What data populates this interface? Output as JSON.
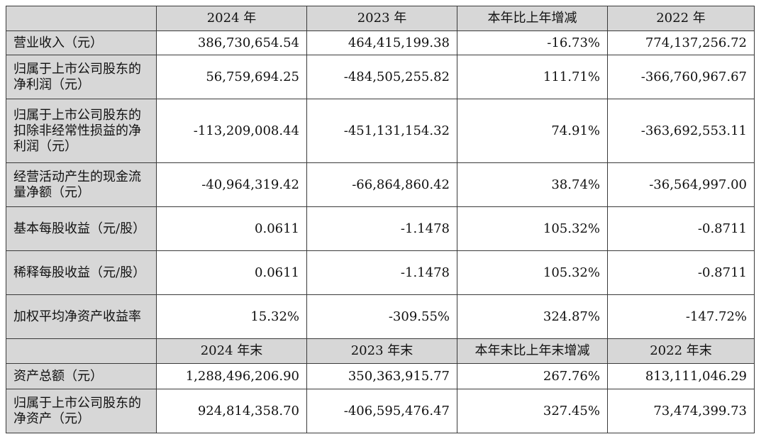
{
  "header1": [
    "",
    "2024 年",
    "2023 年",
    "本年比上年增减",
    "2022 年"
  ],
  "rows1": [
    {
      "label": "营业收入（元）",
      "values": [
        "386,730,654.54",
        "464,415,199.38",
        "-16.73%",
        "774,137,256.72"
      ]
    },
    {
      "label": "归属于上市公司股东的净利润（元）",
      "values": [
        "56,759,694.25",
        "-484,505,255.82",
        "111.71%",
        "-366,760,967.67"
      ]
    },
    {
      "label": "归属于上市公司股东的扣除非经常性损益的净利润（元）",
      "values": [
        "-113,209,008.44",
        "-451,131,154.32",
        "74.91%",
        "-363,692,553.11"
      ]
    },
    {
      "label": "经营活动产生的现金流量净额（元）",
      "values": [
        "-40,964,319.42",
        "-66,864,860.42",
        "38.74%",
        "-36,564,997.00"
      ]
    },
    {
      "label": "基本每股收益（元/股）",
      "values": [
        "0.0611",
        "-1.1478",
        "105.32%",
        "-0.8711"
      ]
    },
    {
      "label": "稀释每股收益（元/股）",
      "values": [
        "0.0611",
        "-1.1478",
        "105.32%",
        "-0.8711"
      ]
    },
    {
      "label": "加权平均净资产收益率",
      "values": [
        "15.32%",
        "-309.55%",
        "324.87%",
        "-147.72%"
      ]
    }
  ],
  "header2": [
    "",
    "2024 年末",
    "2023 年末",
    "本年末比上年末增减",
    "2022 年末"
  ],
  "rows2": [
    {
      "label": "资产总额（元）",
      "values": [
        "1,288,496,206.90",
        "350,363,915.77",
        "267.76%",
        "813,111,046.29"
      ]
    },
    {
      "label": "归属于上市公司股东的净资产（元）",
      "values": [
        "924,814,358.70",
        "-406,595,476.47",
        "327.45%",
        "73,474,399.73"
      ]
    }
  ]
}
